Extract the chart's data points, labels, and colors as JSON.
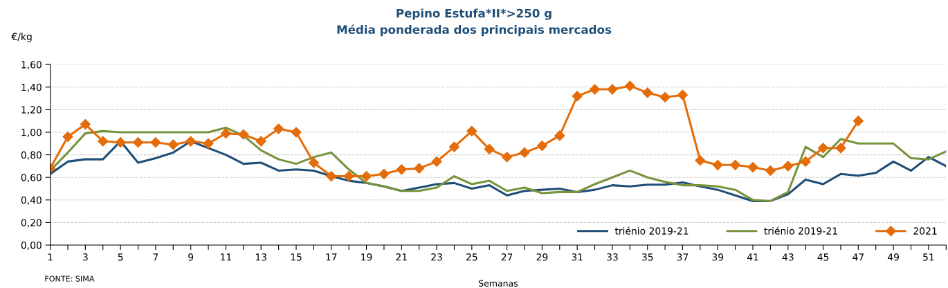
{
  "chart_data": {
    "type": "line",
    "title": "Pepino Estufa*II*>250 g\nMédia ponderada dos principais mercados",
    "xlabel": "Semanas",
    "ylabel": "€/kg",
    "annotations": [
      "FONTE: SIMA"
    ],
    "x": [
      1,
      2,
      3,
      4,
      5,
      6,
      7,
      8,
      9,
      10,
      11,
      12,
      13,
      14,
      15,
      16,
      17,
      18,
      19,
      20,
      21,
      22,
      23,
      24,
      25,
      26,
      27,
      28,
      29,
      30,
      31,
      32,
      33,
      34,
      35,
      36,
      37,
      38,
      39,
      40,
      41,
      42,
      43,
      44,
      45,
      46,
      47,
      48,
      49,
      50,
      51,
      52
    ],
    "series": [
      {
        "name": "triénio 2019-21",
        "color": "#1f4e79",
        "marker": "none",
        "values": [
          0.63,
          0.74,
          0.76,
          0.76,
          0.92,
          0.73,
          0.77,
          0.82,
          0.92,
          0.86,
          0.8,
          0.72,
          0.73,
          0.66,
          0.67,
          0.66,
          0.61,
          0.57,
          0.55,
          0.52,
          0.48,
          0.51,
          0.54,
          0.55,
          0.5,
          0.53,
          0.44,
          0.48,
          0.49,
          0.5,
          0.47,
          0.49,
          0.53,
          0.52,
          0.535,
          0.535,
          0.555,
          0.52,
          0.49,
          0.44,
          0.39,
          0.39,
          0.45,
          0.58,
          0.54,
          0.63,
          0.615,
          0.64,
          0.74,
          0.66,
          0.78,
          0.7
        ]
      },
      {
        "name": "triénio 2019-21",
        "color": "#77933c",
        "marker": "none",
        "values": [
          0.66,
          0.82,
          0.99,
          1.01,
          1.0,
          1.0,
          1.0,
          1.0,
          1.0,
          1.0,
          1.04,
          0.97,
          0.84,
          0.76,
          0.72,
          0.78,
          0.82,
          0.67,
          0.55,
          0.52,
          0.48,
          0.48,
          0.51,
          0.61,
          0.54,
          0.57,
          0.48,
          0.51,
          0.46,
          0.47,
          0.47,
          0.54,
          0.6,
          0.66,
          0.6,
          0.56,
          0.53,
          0.53,
          0.52,
          0.49,
          0.4,
          0.39,
          0.47,
          0.87,
          0.78,
          0.94,
          0.9,
          0.9,
          0.9,
          0.77,
          0.76,
          0.83
        ]
      },
      {
        "name": "2021",
        "color": "#e46c0a",
        "marker": "diamond",
        "values": [
          0.68,
          0.96,
          1.07,
          0.92,
          0.91,
          0.91,
          0.91,
          0.89,
          0.92,
          0.9,
          0.99,
          0.98,
          0.92,
          1.03,
          1.0,
          0.73,
          0.61,
          0.61,
          0.61,
          0.63,
          0.67,
          0.68,
          0.74,
          0.87,
          1.01,
          0.85,
          0.78,
          0.82,
          0.88,
          0.97,
          1.32,
          1.38,
          1.38,
          1.41,
          1.35,
          1.31,
          1.33,
          0.75,
          0.71,
          0.71,
          0.69,
          0.66,
          0.7,
          0.74,
          0.86,
          0.86,
          1.1,
          null,
          null,
          null,
          null,
          null
        ]
      }
    ],
    "xlim": [
      1,
      52
    ],
    "xticks": [
      1,
      {
        "value": 2,
        "label": null
      },
      3,
      {
        "value": 4,
        "label": null
      },
      5,
      {
        "value": 6,
        "label": null
      },
      7,
      {
        "value": 8,
        "label": null
      },
      9,
      {
        "value": 10,
        "label": null
      },
      11,
      {
        "value": 12,
        "label": null
      },
      13,
      {
        "value": 14,
        "label": null
      },
      15,
      {
        "value": 16,
        "label": null
      },
      17,
      {
        "value": 18,
        "label": null
      },
      19,
      {
        "value": 20,
        "label": null
      },
      21,
      {
        "value": 22,
        "label": null
      },
      23,
      {
        "value": 24,
        "label": null
      },
      25,
      {
        "value": 26,
        "label": null
      },
      27,
      {
        "value": 28,
        "label": null
      },
      29,
      {
        "value": 30,
        "label": null
      },
      31,
      {
        "value": 32,
        "label": null
      },
      33,
      {
        "value": 34,
        "label": null
      },
      35,
      {
        "value": 36,
        "label": null
      },
      37,
      {
        "value": 38,
        "label": null
      },
      39,
      {
        "value": 40,
        "label": null
      },
      41,
      {
        "value": 42,
        "label": null
      },
      43,
      {
        "value": 44,
        "label": null
      },
      45,
      {
        "value": 46,
        "label": null
      },
      47,
      {
        "value": 48,
        "label": null
      },
      49,
      {
        "value": 50,
        "label": null
      },
      51,
      {
        "value": 52,
        "label": null
      }
    ],
    "ylim": [
      0,
      1.6
    ],
    "yticks": [
      {
        "value": 0,
        "label": "0,00"
      },
      {
        "value": 0.2,
        "label": "0,20"
      },
      {
        "value": 0.4,
        "label": "0,40"
      },
      {
        "value": 0.6,
        "label": "0,60"
      },
      {
        "value": 0.8,
        "label": "0,80"
      },
      {
        "value": 1.0,
        "label": "1,00"
      },
      {
        "value": 1.2,
        "label": "1,20"
      },
      {
        "value": 1.4,
        "label": "1,40"
      },
      {
        "value": 1.6,
        "label": "1,60"
      }
    ],
    "grid": "y",
    "legend": "bottom right",
    "line_style": "solid"
  }
}
